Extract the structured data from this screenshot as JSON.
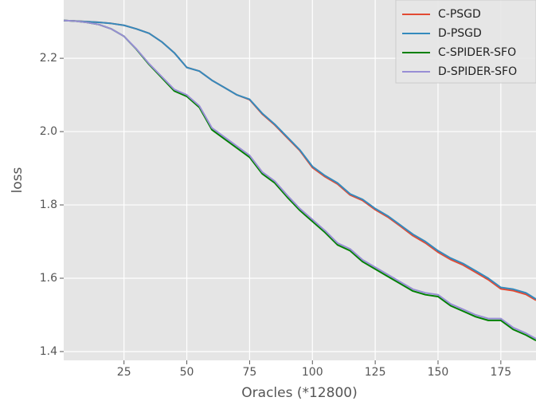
{
  "chart_data": {
    "type": "line",
    "xlabel": "Oracles (*12800)",
    "ylabel": "loss",
    "x": [
      1,
      5,
      10,
      15,
      20,
      25,
      30,
      35,
      40,
      45,
      50,
      55,
      60,
      65,
      70,
      75,
      80,
      85,
      90,
      95,
      100,
      105,
      110,
      115,
      120,
      125,
      130,
      135,
      140,
      145,
      150,
      155,
      160,
      165,
      170,
      175,
      180,
      185,
      189
    ],
    "series": [
      {
        "name": "C-PSGD",
        "color": "#E24A33",
        "values": [
          2.303,
          2.302,
          2.3,
          2.298,
          2.295,
          2.29,
          2.28,
          2.268,
          2.245,
          2.215,
          2.175,
          2.165,
          2.14,
          2.12,
          2.1,
          2.087,
          2.048,
          2.018,
          1.983,
          1.948,
          1.902,
          1.877,
          1.857,
          1.827,
          1.812,
          1.787,
          1.767,
          1.742,
          1.716,
          1.696,
          1.671,
          1.651,
          1.636,
          1.616,
          1.596,
          1.571,
          1.566,
          1.556,
          1.54
        ]
      },
      {
        "name": "D-PSGD",
        "color": "#348ABD",
        "values": [
          2.303,
          2.302,
          2.3,
          2.298,
          2.295,
          2.29,
          2.28,
          2.268,
          2.245,
          2.215,
          2.175,
          2.165,
          2.14,
          2.12,
          2.1,
          2.088,
          2.05,
          2.02,
          1.985,
          1.95,
          1.905,
          1.88,
          1.86,
          1.83,
          1.815,
          1.79,
          1.77,
          1.745,
          1.72,
          1.7,
          1.675,
          1.655,
          1.64,
          1.62,
          1.6,
          1.575,
          1.57,
          1.56,
          1.543
        ]
      },
      {
        "name": "C-SPIDER-SFO",
        "color": "#008000",
        "values": [
          2.303,
          2.302,
          2.298,
          2.292,
          2.28,
          2.26,
          2.224,
          2.183,
          2.147,
          2.111,
          2.096,
          2.066,
          2.005,
          1.98,
          1.955,
          1.93,
          1.885,
          1.86,
          1.821,
          1.785,
          1.755,
          1.725,
          1.691,
          1.675,
          1.645,
          1.625,
          1.605,
          1.585,
          1.565,
          1.555,
          1.55,
          1.525,
          1.51,
          1.495,
          1.485,
          1.485,
          1.46,
          1.445,
          1.43
        ]
      },
      {
        "name": "D-SPIDER-SFO",
        "color": "#988ED5",
        "values": [
          2.303,
          2.302,
          2.298,
          2.292,
          2.28,
          2.26,
          2.225,
          2.185,
          2.15,
          2.115,
          2.1,
          2.07,
          2.01,
          1.985,
          1.96,
          1.935,
          1.89,
          1.865,
          1.826,
          1.79,
          1.76,
          1.73,
          1.696,
          1.68,
          1.65,
          1.63,
          1.61,
          1.59,
          1.57,
          1.56,
          1.555,
          1.53,
          1.515,
          1.5,
          1.49,
          1.49,
          1.465,
          1.45,
          1.435
        ]
      }
    ],
    "xlim": [
      1,
      189
    ],
    "ylim": [
      1.376,
      2.359
    ],
    "xticks": [
      25,
      50,
      75,
      100,
      125,
      150,
      175
    ],
    "yticks": [
      1.4,
      1.6,
      1.8,
      {
        "value": 2,
        "label": "2.0"
      },
      2.2
    ],
    "grid": true,
    "legend": "upper right"
  }
}
